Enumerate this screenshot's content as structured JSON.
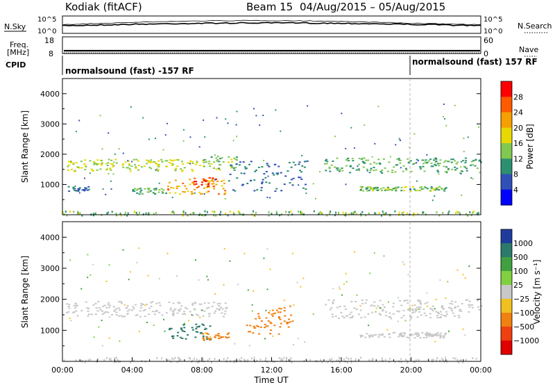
{
  "header": {
    "radar": "Kodiak (fitACF)",
    "beam": "Beam 15",
    "date_range": "04/Aug/2015 – 05/Aug/2015"
  },
  "noise_panel": {
    "left_label": "N.Sky",
    "right_label": "N.Search",
    "left_ticks": [
      "10^5",
      "10^0"
    ],
    "right_ticks": [
      "10^5",
      "10^0"
    ]
  },
  "freq_panel": {
    "left_label_1": "Freq.",
    "left_label_2": "[MHz]",
    "left_ticks": [
      "18",
      "8"
    ],
    "right_label": "Nave",
    "right_ticks": [
      "60",
      "0"
    ]
  },
  "cpid_panel": {
    "label": "CPID",
    "segments": [
      {
        "text": "normalsound (fast) -157 RF",
        "start_hour": 0
      },
      {
        "text": "normalsound (fast) 157 RF",
        "start_hour": 20
      }
    ]
  },
  "chart_data": [
    {
      "type": "heatmap",
      "parameter": "power",
      "ylabel": "Slant Range [km]",
      "ylim": [
        0,
        4500
      ],
      "yticks": [
        "1000",
        "2000",
        "3000",
        "4000"
      ],
      "xlim_hours": [
        0,
        24
      ],
      "colorbar": {
        "label": "Power [dB]",
        "ticks": [
          "28",
          "24",
          "20",
          "16",
          "12",
          "8",
          "4"
        ],
        "colors": [
          "#ff0000",
          "#ff5a00",
          "#f5a000",
          "#e8d800",
          "#80c850",
          "#2c9070",
          "#3050b8",
          "#0000ff"
        ]
      },
      "bands": [
        {
          "t0": 0.2,
          "t1": 8.5,
          "r0": 1450,
          "r1": 1850,
          "value": 16
        },
        {
          "t0": 6.0,
          "t1": 9.5,
          "r0": 700,
          "r1": 1200,
          "value": 22
        },
        {
          "t0": 7.5,
          "t1": 8.8,
          "r0": 950,
          "r1": 1250,
          "value": 28
        },
        {
          "t0": 4.0,
          "t1": 6.0,
          "r0": 700,
          "r1": 900,
          "value": 12
        },
        {
          "t0": 8.0,
          "t1": 10.0,
          "r0": 1500,
          "r1": 2000,
          "value": 14
        },
        {
          "t0": 9.5,
          "t1": 14.0,
          "r0": 800,
          "r1": 1800,
          "value": 8
        },
        {
          "t0": 15.0,
          "t1": 24.0,
          "r0": 1400,
          "r1": 1900,
          "value": 12
        },
        {
          "t0": 17.0,
          "t1": 22.0,
          "r0": 800,
          "r1": 950,
          "value": 14
        },
        {
          "t0": 0.2,
          "t1": 1.5,
          "r0": 800,
          "r1": 950,
          "value": 8
        }
      ]
    },
    {
      "type": "heatmap",
      "parameter": "velocity",
      "ylabel": "Slant Range [km]",
      "ylim": [
        0,
        4500
      ],
      "yticks": [
        "1000",
        "2000",
        "3000",
        "4000"
      ],
      "xlabel": "Time UT",
      "xticks": [
        "00:00",
        "04:00",
        "08:00",
        "12:00",
        "16:00",
        "20:00",
        "00:00"
      ],
      "xlim_hours": [
        0,
        24
      ],
      "colorbar": {
        "label": "Velocity [m s⁻¹]",
        "ticks": [
          "1000",
          "500",
          "100",
          "25",
          "−25",
          "−100",
          "−500",
          "−1000"
        ],
        "colors": [
          "#1f3c9c",
          "#2c7a6a",
          "#40a040",
          "#80d040",
          "#c8c8c8",
          "#f0c020",
          "#f08010",
          "#f04010",
          "#e00000"
        ]
      },
      "bands": [
        {
          "t0": 0.2,
          "t1": 9.5,
          "r0": 1450,
          "r1": 1950,
          "value": 0
        },
        {
          "t0": 6.0,
          "t1": 8.5,
          "r0": 700,
          "r1": 1250,
          "value": 300
        },
        {
          "t0": 8.0,
          "t1": 9.5,
          "r0": 700,
          "r1": 950,
          "value": -200
        },
        {
          "t0": 10.5,
          "t1": 12.5,
          "r0": 900,
          "r1": 1600,
          "value": -150
        },
        {
          "t0": 12.0,
          "t1": 13.2,
          "r0": 1100,
          "r1": 1800,
          "value": -400
        },
        {
          "t0": 15.0,
          "t1": 24.0,
          "r0": 1400,
          "r1": 2000,
          "value": 0
        },
        {
          "t0": 17.0,
          "t1": 22.0,
          "r0": 780,
          "r1": 950,
          "value": 0
        }
      ]
    }
  ]
}
